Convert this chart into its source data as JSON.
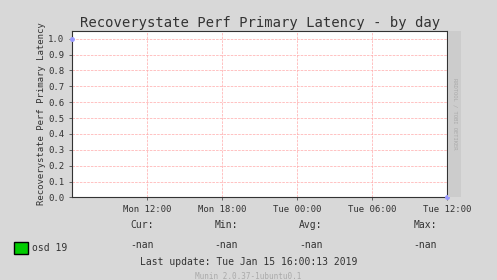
{
  "title": "Recoverystate Perf Primary Latency - by day",
  "ylabel": "Recoverystate Perf Primary Latency",
  "background_color": "#d8d8d8",
  "plot_bg_color": "#ffffff",
  "grid_color": "#ffaaaa",
  "border_color": "#aaaaaa",
  "yticks": [
    0.0,
    0.1,
    0.2,
    0.3,
    0.4,
    0.5,
    0.6,
    0.7,
    0.8,
    0.9,
    1.0
  ],
  "ylim": [
    0.0,
    1.05
  ],
  "xtick_labels": [
    "Mon 12:00",
    "Mon 18:00",
    "Tue 00:00",
    "Tue 06:00",
    "Tue 12:00"
  ],
  "xmin": 0,
  "xmax": 5,
  "legend_label": "osd 19",
  "legend_color": "#00cc00",
  "cur_label": "Cur:",
  "cur_value": "-nan",
  "min_label": "Min:",
  "min_value": "-nan",
  "avg_label": "Avg:",
  "avg_value": "-nan",
  "max_label": "Max:",
  "max_value": "-nan",
  "last_update": "Last update: Tue Jan 15 16:00:13 2019",
  "footer": "Munin 2.0.37-1ubuntu0.1",
  "rrdtool_label": "RRDTOOL / TOBI OETIKER",
  "title_fontsize": 10,
  "axis_label_fontsize": 6.5,
  "tick_fontsize": 6.5,
  "footer_fontsize": 5.5,
  "stats_fontsize": 7
}
